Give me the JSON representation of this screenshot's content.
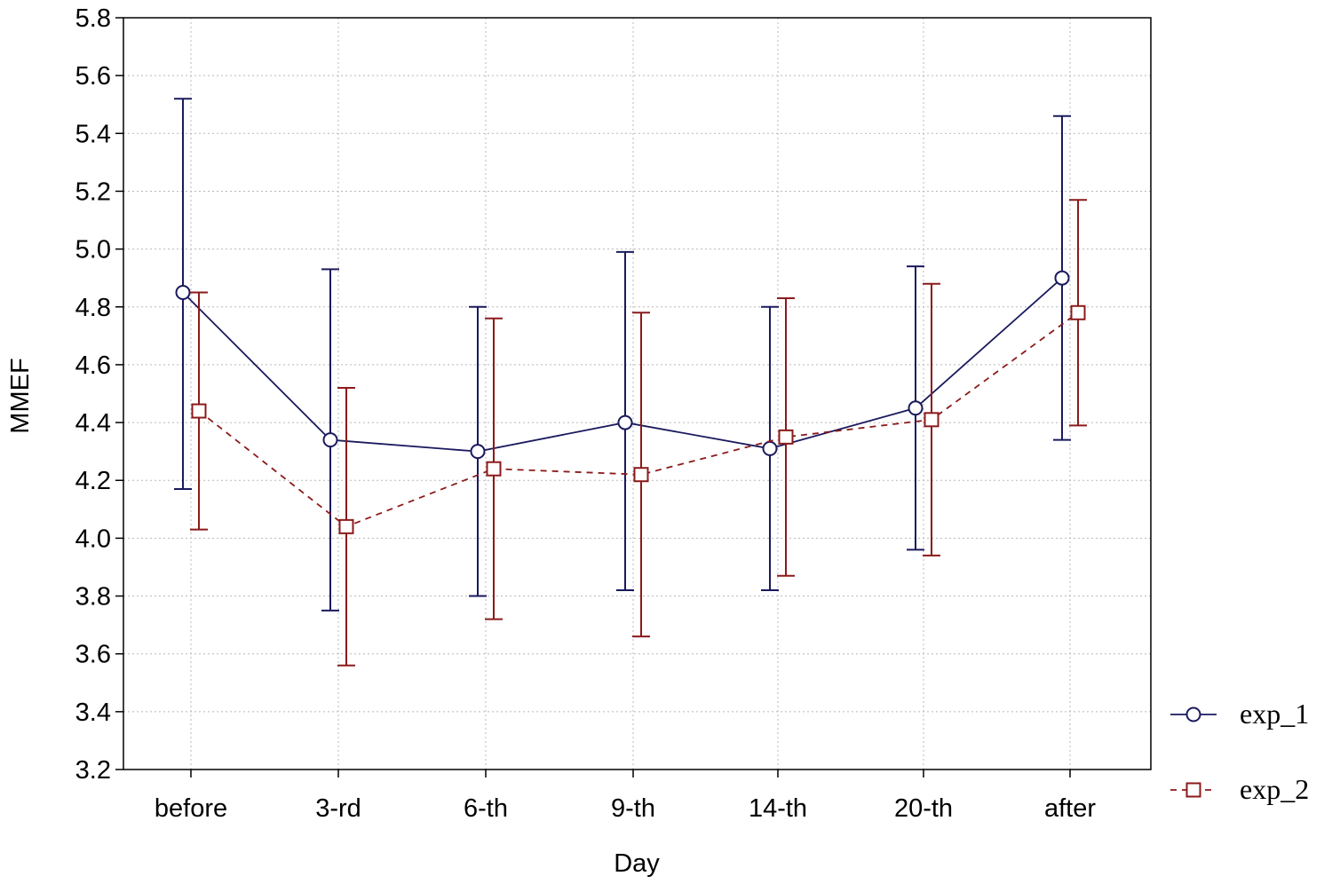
{
  "chart_data": {
    "type": "line",
    "title": "",
    "xlabel": "Day",
    "ylabel": "MMEF",
    "categories": [
      "before",
      "3-rd",
      "6-th",
      "9-th",
      "14-th",
      "20-th",
      "after"
    ],
    "ylim": [
      3.2,
      5.8
    ],
    "yticks": [
      "5.8",
      "5.6",
      "5.4",
      "5.2",
      "5.0",
      "4.8",
      "4.6",
      "4.4",
      "4.2",
      "4.0",
      "3.8",
      "3.6",
      "3.4",
      "3.2"
    ],
    "grid": true,
    "legend_position": "right",
    "series": [
      {
        "name": "exp_1",
        "color": "#1a1a5e",
        "line_style": "solid",
        "marker": "circle",
        "values": [
          4.85,
          4.34,
          4.3,
          4.4,
          4.31,
          4.45,
          4.9
        ],
        "err_low": [
          4.17,
          3.75,
          3.8,
          3.82,
          3.82,
          3.96,
          4.34
        ],
        "err_high": [
          5.52,
          4.93,
          4.8,
          4.99,
          4.8,
          4.94,
          5.46
        ]
      },
      {
        "name": "exp_2",
        "color": "#8b1a1a",
        "line_style": "dashed",
        "marker": "square",
        "values": [
          4.44,
          4.04,
          4.24,
          4.22,
          4.35,
          4.41,
          4.78
        ],
        "err_low": [
          4.03,
          3.56,
          3.72,
          3.66,
          3.87,
          3.94,
          4.39
        ],
        "err_high": [
          4.85,
          4.52,
          4.76,
          4.78,
          4.83,
          4.88,
          5.17
        ]
      }
    ]
  }
}
